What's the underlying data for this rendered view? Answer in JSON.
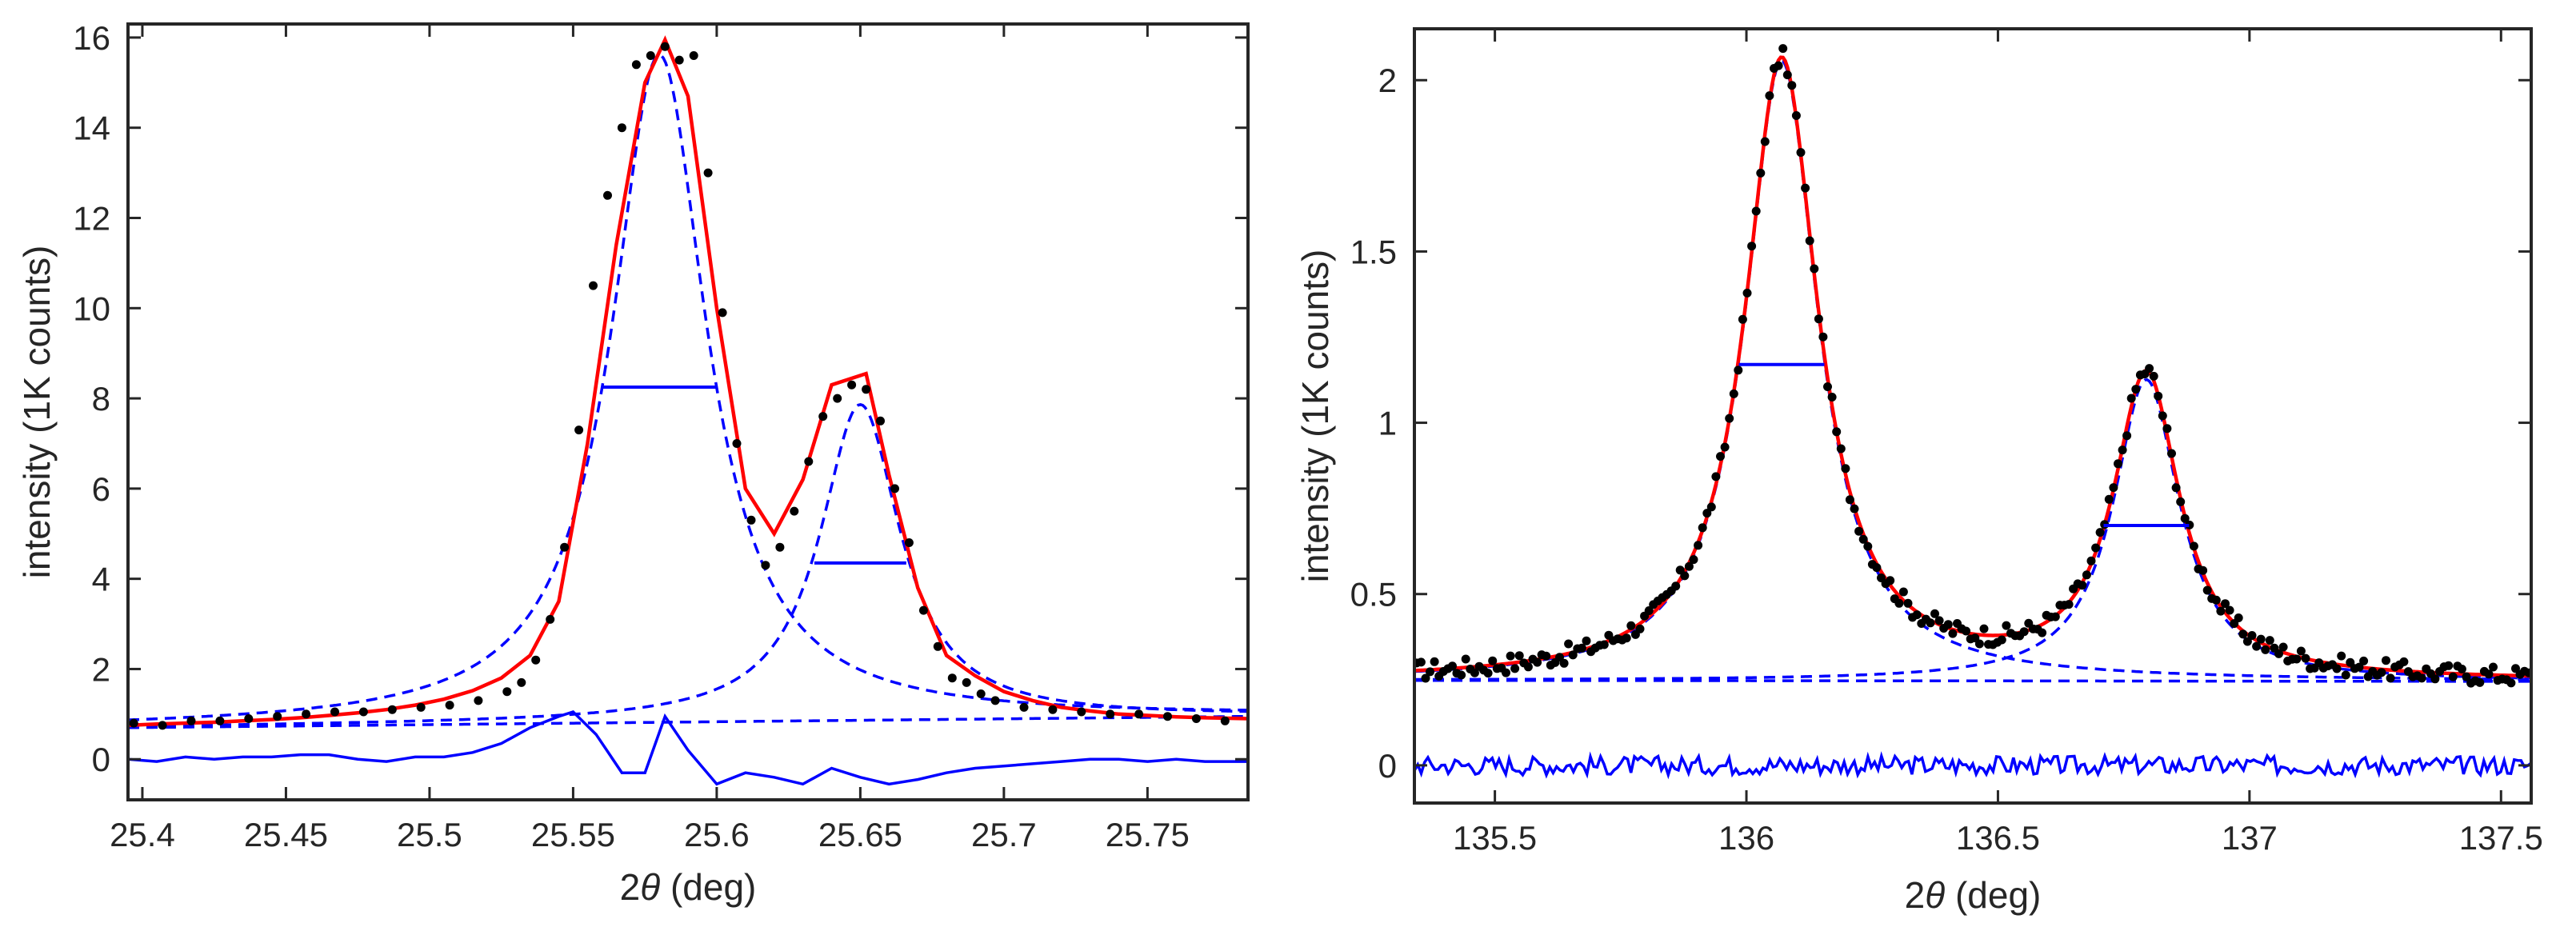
{
  "colors": {
    "fit": "#ff0000",
    "component": "#0000ff",
    "residual": "#0000ff",
    "data": "#000000",
    "axis": "#262626"
  },
  "chart_data": [
    {
      "type": "scatter",
      "name": "left-panel",
      "title": "",
      "xlabel_prefix": "2",
      "xlabel_symbol": "θ",
      "xlabel_suffix": " (deg)",
      "ylabel": "intensity (1K counts)",
      "xlim": [
        25.395,
        25.785
      ],
      "ylim": [
        -0.9,
        16.3
      ],
      "xticks": [
        25.4,
        25.45,
        25.5,
        25.55,
        25.6,
        25.65,
        25.7,
        25.75
      ],
      "xtick_labels": [
        "25.4",
        "25.45",
        "25.5",
        "25.55",
        "25.6",
        "25.65",
        "25.7",
        "25.75"
      ],
      "yticks": [
        0,
        2,
        4,
        6,
        8,
        10,
        12,
        14,
        16
      ],
      "ytick_labels": [
        "0",
        "2",
        "4",
        "6",
        "8",
        "10",
        "12",
        "14",
        "16"
      ],
      "peaks": [
        {
          "center": 25.58,
          "height": 14.8,
          "hwhm": 0.02
        },
        {
          "center": 25.65,
          "height": 7.0,
          "hwhm": 0.017
        }
      ],
      "background": {
        "x0": 25.395,
        "y0": 0.7,
        "x1": 25.785,
        "y1": 0.95
      },
      "fit_x": [
        25.395,
        25.405,
        25.415,
        25.425,
        25.435,
        25.445,
        25.455,
        25.465,
        25.475,
        25.485,
        25.495,
        25.505,
        25.515,
        25.525,
        25.535,
        25.545,
        25.555,
        25.565,
        25.575,
        25.582,
        25.59,
        25.6,
        25.61,
        25.62,
        25.63,
        25.64,
        25.652,
        25.66,
        25.67,
        25.68,
        25.69,
        25.7,
        25.71,
        25.72,
        25.73,
        25.74,
        25.75,
        25.76,
        25.77,
        25.785
      ],
      "fit_y": [
        0.75,
        0.78,
        0.8,
        0.82,
        0.85,
        0.88,
        0.92,
        0.97,
        1.03,
        1.1,
        1.2,
        1.33,
        1.52,
        1.8,
        2.3,
        3.5,
        7.0,
        11.4,
        15.0,
        15.95,
        14.7,
        10.0,
        6.0,
        5.0,
        6.2,
        8.3,
        8.55,
        6.3,
        3.8,
        2.3,
        1.85,
        1.5,
        1.3,
        1.15,
        1.07,
        1.0,
        0.97,
        0.94,
        0.92,
        0.9
      ],
      "data_x": [
        25.397,
        25.407,
        25.417,
        25.427,
        25.437,
        25.447,
        25.457,
        25.467,
        25.477,
        25.487,
        25.497,
        25.507,
        25.517,
        25.527,
        25.532,
        25.537,
        25.542,
        25.547,
        25.552,
        25.557,
        25.562,
        25.567,
        25.572,
        25.577,
        25.582,
        25.587,
        25.592,
        25.597,
        25.602,
        25.607,
        25.612,
        25.617,
        25.622,
        25.627,
        25.632,
        25.637,
        25.642,
        25.647,
        25.652,
        25.657,
        25.662,
        25.667,
        25.672,
        25.677,
        25.682,
        25.687,
        25.692,
        25.697,
        25.707,
        25.717,
        25.727,
        25.737,
        25.747,
        25.757,
        25.767,
        25.777
      ],
      "data_y": [
        0.8,
        0.75,
        0.85,
        0.85,
        0.9,
        0.95,
        1.0,
        1.05,
        1.05,
        1.1,
        1.15,
        1.2,
        1.3,
        1.5,
        1.7,
        2.2,
        3.1,
        4.7,
        7.3,
        10.5,
        12.5,
        14.0,
        15.4,
        15.6,
        15.8,
        15.5,
        15.6,
        13.0,
        9.9,
        7.0,
        5.3,
        4.3,
        4.7,
        5.5,
        6.6,
        7.6,
        8.0,
        8.3,
        8.2,
        7.5,
        6.0,
        4.8,
        3.3,
        2.5,
        1.8,
        1.7,
        1.45,
        1.3,
        1.15,
        1.1,
        1.05,
        1.0,
        1.0,
        0.95,
        0.9,
        0.85
      ],
      "residual_x": [
        25.395,
        25.405,
        25.415,
        25.425,
        25.435,
        25.445,
        25.455,
        25.465,
        25.475,
        25.485,
        25.495,
        25.505,
        25.515,
        25.525,
        25.535,
        25.545,
        25.55,
        25.558,
        25.567,
        25.575,
        25.582,
        25.59,
        25.6,
        25.61,
        25.62,
        25.63,
        25.64,
        25.65,
        25.66,
        25.67,
        25.68,
        25.69,
        25.7,
        25.71,
        25.72,
        25.73,
        25.74,
        25.75,
        25.76,
        25.77,
        25.785
      ],
      "residual_y": [
        0.0,
        -0.05,
        0.05,
        0.0,
        0.05,
        0.05,
        0.1,
        0.1,
        0.0,
        -0.05,
        0.05,
        0.05,
        0.15,
        0.35,
        0.7,
        0.95,
        1.05,
        0.55,
        -0.3,
        -0.3,
        0.95,
        0.2,
        -0.55,
        -0.3,
        -0.4,
        -0.55,
        -0.2,
        -0.4,
        -0.55,
        -0.45,
        -0.3,
        -0.2,
        -0.15,
        -0.1,
        -0.05,
        0.0,
        0.0,
        -0.05,
        0.0,
        -0.05,
        -0.05
      ],
      "fwhm_markers": [
        {
          "x1": 25.56,
          "x2": 25.6,
          "y": 8.25
        },
        {
          "x1": 25.634,
          "x2": 25.666,
          "y": 4.35
        }
      ]
    },
    {
      "type": "scatter",
      "name": "right-panel",
      "title": "",
      "xlabel_prefix": "2",
      "xlabel_symbol": "θ",
      "xlabel_suffix": " (deg)",
      "ylabel": "intensity (1K counts)",
      "xlim": [
        135.34,
        137.56
      ],
      "ylim": [
        -0.11,
        2.15
      ],
      "xticks": [
        135.5,
        136,
        136.5,
        137,
        137.5
      ],
      "xtick_labels": [
        "135.5",
        "136",
        "136.5",
        "137",
        "137.5"
      ],
      "yticks": [
        0,
        0.5,
        1,
        1.5,
        2
      ],
      "ytick_labels": [
        "0",
        "0.5",
        "1",
        "1.5",
        "2"
      ],
      "peaks": [
        {
          "center": 136.07,
          "height": 1.81,
          "hwhm": 0.088
        },
        {
          "center": 136.795,
          "height": 0.88,
          "hwhm": 0.08
        }
      ],
      "background": {
        "x0": 135.34,
        "y0": 0.248,
        "x1": 137.56,
        "y1": 0.245
      },
      "residual_amplitude": 0.028,
      "noise_seed": 17,
      "fwhm_markers": [
        {
          "x1": 135.985,
          "x2": 136.155,
          "y": 1.17
        },
        {
          "x1": 136.71,
          "x2": 136.88,
          "y": 0.7
        }
      ]
    }
  ]
}
